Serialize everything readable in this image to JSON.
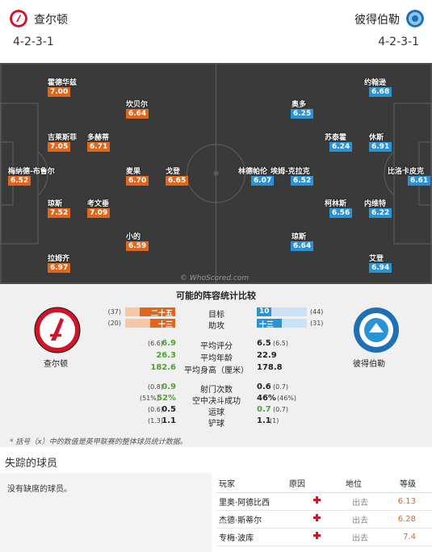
{
  "home": {
    "name": "查尔顿",
    "formation": "4-2-3-1",
    "color": "#e0661c"
  },
  "away": {
    "name": "彼得伯勒",
    "formation": "4-2-3-1",
    "color": "#2a93d5"
  },
  "home_players": [
    {
      "name": "霍德华兹",
      "rating": "7.00"
    },
    {
      "name": "坎贝尔",
      "rating": "6.64"
    },
    {
      "name": "吉莱斯菲",
      "rating": "7.05"
    },
    {
      "name": "多赫蒂",
      "rating": "6.71"
    },
    {
      "name": "梅纳德-布鲁尔",
      "rating": "6.52"
    },
    {
      "name": "麦果",
      "rating": "6.70"
    },
    {
      "name": "戈登",
      "rating": "6.65"
    },
    {
      "name": "琼斯",
      "rating": "7.52"
    },
    {
      "name": "考文垂",
      "rating": "7.09"
    },
    {
      "name": "小的",
      "rating": "6.59"
    },
    {
      "name": "拉姆齐",
      "rating": "6.97"
    }
  ],
  "away_players": [
    {
      "name": "约翰逊",
      "rating": "6.68"
    },
    {
      "name": "奥多",
      "rating": "6.25"
    },
    {
      "name": "苏泰霍",
      "rating": "6.24"
    },
    {
      "name": "休斯",
      "rating": "6.91"
    },
    {
      "name": "比洛卡皮克",
      "rating": "6.61"
    },
    {
      "name": "林德帕伦",
      "rating": "6.07"
    },
    {
      "name": "埃姆-克拉克",
      "rating": "6.52"
    },
    {
      "name": "柯林斯",
      "rating": "6.56"
    },
    {
      "name": "内维特",
      "rating": "6.22"
    },
    {
      "name": "琼斯",
      "rating": "6.64"
    },
    {
      "name": "艾登",
      "rating": "6.94"
    }
  ],
  "watermark": "© WhoScored.com",
  "compare": {
    "title": "可能的阵容统计比较",
    "home_label": "查尔顿",
    "away_label": "彼得伯勒",
    "bars": [
      {
        "label": "目标",
        "home_season": "(37)",
        "home_value": "二十五",
        "home_fraction": 0.71,
        "away_value": "10",
        "away_fraction": 0.29,
        "away_season": "(44)"
      },
      {
        "label": "助攻",
        "home_season": "(20)",
        "home_value": "十三",
        "home_fraction": 0.5,
        "away_value": "十三",
        "away_fraction": 0.5,
        "away_season": "(31)"
      }
    ],
    "stats1": [
      {
        "label": "平均评分",
        "home_season": "(6.6)",
        "home_value": "6.9",
        "away_value": "6.5",
        "away_season": "(6.5)"
      },
      {
        "label": "平均年龄",
        "home_season": "",
        "home_value": "26.3",
        "away_value": "22.9",
        "away_season": ""
      },
      {
        "label": "平均身高（厘米）",
        "home_season": "",
        "home_value": "182.6",
        "away_value": "178.8",
        "away_season": ""
      }
    ],
    "stats2": [
      {
        "label": "射门次数",
        "home_season": "(0.8)",
        "home_value": "0.9",
        "away_value": "0.6",
        "away_season": "(0.7)"
      },
      {
        "label": "空中决斗成功",
        "home_season": "(51%)",
        "home_value": "52%",
        "away_value": "46%",
        "away_season": "(46%)"
      },
      {
        "label": "运球",
        "home_season": "(0.6)",
        "home_value": "0.5",
        "away_value": "0.7",
        "away_season": "(0.7)"
      },
      {
        "label": "铲球",
        "home_season": "(1.3)",
        "home_value": "1.1",
        "away_value": "1.1",
        "away_season": "(1)"
      }
    ],
    "note": "* 括号（x）中的数值是英甲联赛的整体球员统计数据。"
  },
  "missing": {
    "title": "失踪的球员",
    "home_text": "没有缺席的球员。",
    "columns": [
      "玩家",
      "原因",
      "地位",
      "等级"
    ],
    "rows": [
      {
        "player": "里奥·阿德比西",
        "status": "出去",
        "rating": "6.13"
      },
      {
        "player": "杰德·斯蒂尔",
        "status": "出去",
        "rating": "6.28"
      },
      {
        "player": "专梅·波库",
        "status": "出去",
        "rating": "7.4"
      }
    ]
  }
}
